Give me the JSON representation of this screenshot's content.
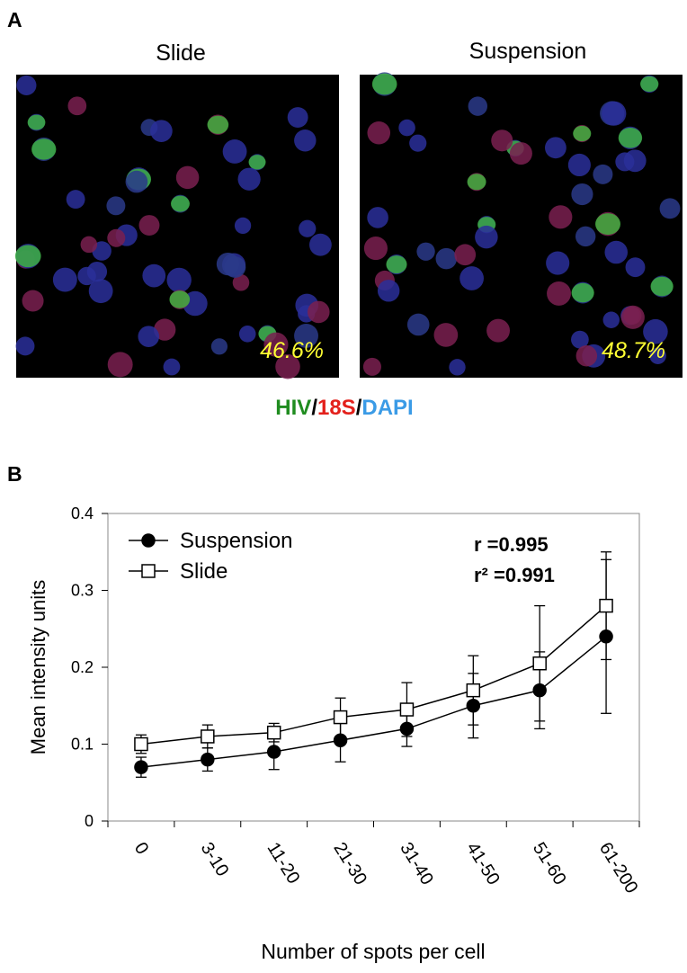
{
  "panels": {
    "a": "A",
    "b": "B"
  },
  "images": [
    {
      "title": "Slide",
      "percentage": "46.6%"
    },
    {
      "title": "Suspension",
      "percentage": "48.7%"
    }
  ],
  "stain_legend": [
    {
      "text": "HIV",
      "color": "#1f8c1f"
    },
    {
      "text": "/",
      "color": "#000000"
    },
    {
      "text": "18S",
      "color": "#e3201b"
    },
    {
      "text": "/",
      "color": "#000000"
    },
    {
      "text": "DAPI",
      "color": "#3b9be6"
    }
  ],
  "chart_data": {
    "type": "line",
    "ylabel": "Mean intensity units",
    "xlabel": "Number of spots per cell",
    "categories": [
      "0",
      "3-10",
      "11-20",
      "21-30",
      "31-40",
      "41-50",
      "51-60",
      "61-200"
    ],
    "series": [
      {
        "name": "Suspension",
        "color": "#000000",
        "marker": "circle",
        "values": [
          0.07,
          0.08,
          0.09,
          0.105,
          0.12,
          0.15,
          0.17,
          0.24
        ],
        "errors": [
          0.013,
          0.015,
          0.023,
          0.028,
          0.023,
          0.042,
          0.05,
          0.1
        ]
      },
      {
        "name": "Slide",
        "color": "#ffffff",
        "marker": "square",
        "values": [
          0.1,
          0.11,
          0.115,
          0.135,
          0.145,
          0.17,
          0.205,
          0.28
        ],
        "errors": [
          0.012,
          0.015,
          0.012,
          0.025,
          0.035,
          0.045,
          0.075,
          0.07
        ]
      }
    ],
    "ylim": [
      0,
      0.4
    ],
    "yticks": [
      0,
      0.1,
      0.2,
      0.3,
      0.4
    ],
    "annotations": [
      "r =0.995",
      "r² =0.991"
    ]
  }
}
